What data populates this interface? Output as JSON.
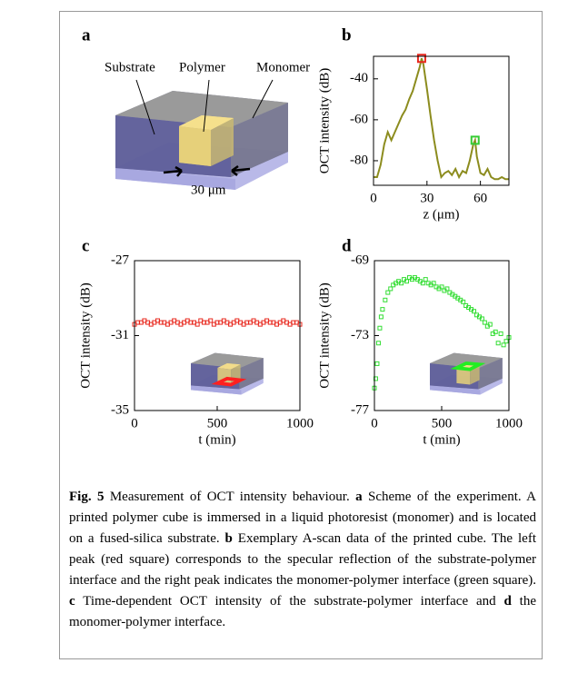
{
  "panel_a": {
    "panel": "a",
    "labels": [
      "Substrate",
      "Polymer",
      "Monomer"
    ],
    "scale": "30 μm"
  },
  "chart_data": [
    {
      "type": "line",
      "panel": "b",
      "y_label": "OCT intensity (dB)",
      "x_label": "z (μm)",
      "x": [
        0,
        2,
        4,
        6,
        8,
        10,
        12,
        14,
        16,
        18,
        20,
        22,
        24,
        26,
        27,
        28,
        30,
        32,
        34,
        36,
        38,
        40,
        42,
        44,
        46,
        48,
        50,
        52,
        54,
        56,
        57,
        58,
        60,
        62,
        64,
        66,
        68,
        70,
        72,
        74,
        76
      ],
      "values": [
        -88,
        -88,
        -82,
        -72,
        -66,
        -70,
        -66,
        -62,
        -58,
        -55,
        -50,
        -46,
        -40,
        -34,
        -30,
        -33,
        -45,
        -58,
        -70,
        -80,
        -88,
        -86,
        -85,
        -87,
        -84,
        -88,
        -85,
        -86,
        -80,
        -72,
        -70,
        -78,
        -86,
        -87,
        -84,
        -88,
        -89,
        -89,
        -88,
        -89,
        -89
      ],
      "color": "#8c8c1e",
      "markers": [
        {
          "x": 27,
          "value": -30,
          "color": "#e8281e"
        },
        {
          "x": 57,
          "value": -70,
          "color": "#33cc33"
        }
      ],
      "xlim": [
        0,
        76
      ],
      "ylim": [
        -92,
        -29
      ],
      "xticks": [
        0,
        30,
        60
      ],
      "yticks": [
        -40,
        -60,
        -80
      ]
    },
    {
      "type": "scatter",
      "panel": "c",
      "y_label": "OCT intensity (dB)",
      "x_label": "t (min)",
      "x": [
        0,
        20,
        40,
        60,
        80,
        100,
        120,
        140,
        160,
        180,
        200,
        220,
        240,
        260,
        280,
        300,
        320,
        340,
        360,
        380,
        400,
        420,
        440,
        460,
        480,
        500,
        520,
        540,
        560,
        580,
        600,
        620,
        640,
        660,
        680,
        700,
        720,
        740,
        760,
        780,
        800,
        820,
        840,
        860,
        880,
        900,
        920,
        940,
        960,
        980,
        1000
      ],
      "values": [
        -30.4,
        -30.3,
        -30.3,
        -30.2,
        -30.3,
        -30.4,
        -30.3,
        -30.2,
        -30.3,
        -30.3,
        -30.4,
        -30.3,
        -30.2,
        -30.3,
        -30.4,
        -30.3,
        -30.2,
        -30.3,
        -30.3,
        -30.4,
        -30.2,
        -30.3,
        -30.3,
        -30.2,
        -30.4,
        -30.3,
        -30.3,
        -30.2,
        -30.3,
        -30.4,
        -30.3,
        -30.2,
        -30.3,
        -30.4,
        -30.3,
        -30.3,
        -30.2,
        -30.3,
        -30.4,
        -30.3,
        -30.2,
        -30.3,
        -30.3,
        -30.4,
        -30.3,
        -30.2,
        -30.3,
        -30.4,
        -30.3,
        -30.3,
        -30.4
      ],
      "color": "#e8281e",
      "xlim": [
        0,
        1000
      ],
      "ylim": [
        -35,
        -27
      ],
      "xticks": [
        0,
        500,
        1000
      ],
      "yticks": [
        -27,
        -31,
        -35
      ]
    },
    {
      "type": "scatter",
      "panel": "d",
      "y_label": "OCT intensity (dB)",
      "x_label": "t (min)",
      "x": [
        0,
        10,
        20,
        30,
        40,
        50,
        60,
        80,
        100,
        120,
        140,
        160,
        180,
        200,
        220,
        240,
        260,
        280,
        300,
        320,
        340,
        360,
        380,
        400,
        420,
        440,
        460,
        480,
        500,
        520,
        540,
        560,
        580,
        600,
        620,
        640,
        660,
        680,
        700,
        720,
        740,
        760,
        780,
        800,
        820,
        840,
        860,
        880,
        900,
        920,
        940,
        960,
        980,
        1000
      ],
      "values": [
        -75.8,
        -75.3,
        -74.5,
        -73.4,
        -72.6,
        -72.0,
        -71.6,
        -71.1,
        -70.7,
        -70.5,
        -70.3,
        -70.2,
        -70.1,
        -70.2,
        -70.0,
        -70.1,
        -69.9,
        -70.0,
        -69.9,
        -70.0,
        -70.1,
        -70.2,
        -70.0,
        -70.2,
        -70.3,
        -70.2,
        -70.4,
        -70.5,
        -70.4,
        -70.6,
        -70.5,
        -70.7,
        -70.8,
        -70.9,
        -71.0,
        -71.1,
        -71.2,
        -71.4,
        -71.5,
        -71.6,
        -71.7,
        -71.9,
        -72.0,
        -72.1,
        -72.3,
        -72.5,
        -72.4,
        -72.9,
        -72.8,
        -73.4,
        -72.9,
        -73.5,
        -73.3,
        -73.1
      ],
      "color": "#33dd33",
      "xlim": [
        0,
        1000
      ],
      "ylim": [
        -77,
        -69
      ],
      "xticks": [
        0,
        500,
        1000
      ],
      "yticks": [
        -69,
        -73,
        -77
      ]
    }
  ],
  "caption": [
    {
      "text": "Fig. 5",
      "bold": true
    },
    {
      "text": " Measurement of OCT intensity behaviour. ",
      "bold": false
    },
    {
      "text": "a",
      "bold": true
    },
    {
      "text": " Scheme of the experiment. A printed polymer cube is immersed in a liquid photoresist (monomer) and is located on a fused-silica substrate. ",
      "bold": false
    },
    {
      "text": "b",
      "bold": true
    },
    {
      "text": " Exemplary A-scan data of the printed cube. The left peak (red square) corresponds to the specular reflection of the substrate-polymer interface and the right peak indicates the monomer-polymer interface (green square). ",
      "bold": false
    },
    {
      "text": "c",
      "bold": true
    },
    {
      "text": " Time-dependent OCT intensity of the substrate-polymer interface and ",
      "bold": false
    },
    {
      "text": "d",
      "bold": true
    },
    {
      "text": " the monomer-polymer interface.",
      "bold": false
    }
  ]
}
